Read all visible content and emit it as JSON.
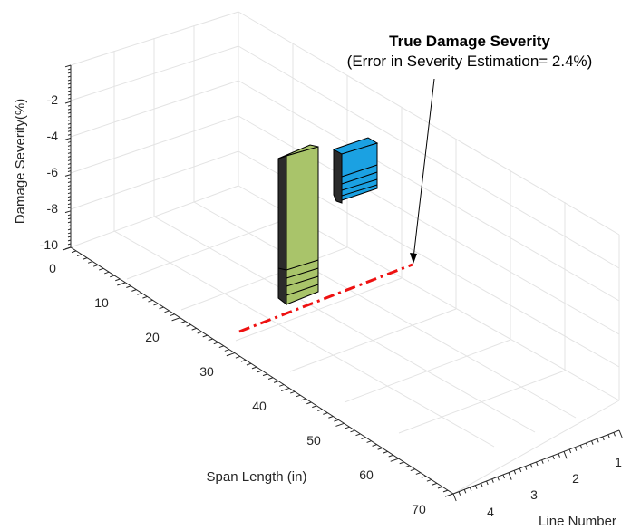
{
  "chart_data": {
    "type": "bar3d",
    "xlabel": "Span Length (in)",
    "ylabel": "Line Number",
    "zlabel": "Damage Severity(%)",
    "xticks": [
      0,
      10,
      20,
      30,
      40,
      50,
      60,
      70
    ],
    "yticks": [
      1,
      2,
      3,
      4
    ],
    "zticks": [
      -2,
      -4,
      -6,
      -8,
      -10
    ],
    "zlim": [
      -10,
      0
    ],
    "grid": true,
    "bars": [
      {
        "color": "#a9c46a",
        "depth_top": 0.0,
        "depth_bottom": -10.0,
        "steps": [
          -7.8,
          -8.4,
          -9.0,
          -9.6
        ]
      },
      {
        "color": "#1ba1e2",
        "depth_top": 0.0,
        "depth_bottom": -2.7,
        "steps": [
          -1.4,
          -1.8,
          -2.2
        ]
      }
    ],
    "true_damage_line": {
      "color": "#ee1111",
      "style": "dash-dot"
    },
    "annotation": {
      "title": "True Damage Severity",
      "subtitle": "(Error in Severity Estimation= 2.4%)"
    }
  }
}
